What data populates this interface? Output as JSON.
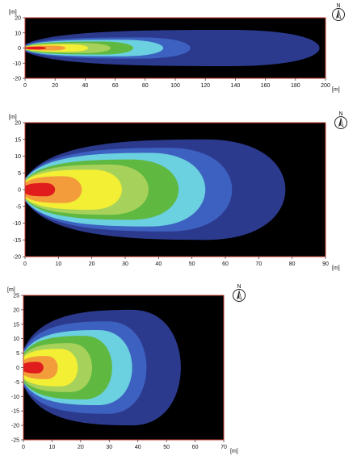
{
  "chart_data": [
    {
      "type": "heatmap",
      "x_unit": "[m]",
      "y_unit": "[m]",
      "xlim": [
        0,
        200
      ],
      "ylim": [
        -20,
        20
      ],
      "x_ticks": [
        "0",
        "20",
        "40",
        "60",
        "80",
        "100",
        "120",
        "140",
        "160",
        "180",
        "200"
      ],
      "y_ticks": [
        "20",
        "10",
        "0",
        "-10",
        "-20"
      ],
      "compass_label": "N",
      "background": "#000000",
      "frame_color": "#c0392b",
      "contours": [
        {
          "color": "#2c3a8e",
          "extent_x": 196,
          "half_width": 12
        },
        {
          "color": "#3d61c0",
          "extent_x": 110,
          "half_width": 7
        },
        {
          "color": "#6bd0df",
          "extent_x": 92,
          "half_width": 5.5
        },
        {
          "color": "#5fb840",
          "extent_x": 72,
          "half_width": 4.3
        },
        {
          "color": "#a6d15a",
          "extent_x": 57,
          "half_width": 3.3
        },
        {
          "color": "#f2ef34",
          "extent_x": 42,
          "half_width": 2.5
        },
        {
          "color": "#f39c3c",
          "extent_x": 27,
          "half_width": 1.6
        },
        {
          "color": "#e01c1c",
          "extent_x": 14,
          "half_width": 0.9
        }
      ]
    },
    {
      "type": "heatmap",
      "x_unit": "[m]",
      "y_unit": "[m]",
      "xlim": [
        0,
        90
      ],
      "ylim": [
        -20,
        20
      ],
      "x_ticks": [
        "0",
        "10",
        "20",
        "30",
        "40",
        "50",
        "60",
        "70",
        "80",
        "90"
      ],
      "y_ticks": [
        "20",
        "15",
        "10",
        "5",
        "0",
        "-5",
        "-10",
        "-15",
        "-20"
      ],
      "compass_label": "N",
      "background": "#000000",
      "frame_color": "#c0392b",
      "contours": [
        {
          "color": "#2c3a8e",
          "extent_x": 78,
          "half_width": 15
        },
        {
          "color": "#3d61c0",
          "extent_x": 62,
          "half_width": 12.5
        },
        {
          "color": "#6bd0df",
          "extent_x": 54,
          "half_width": 11
        },
        {
          "color": "#5fb840",
          "extent_x": 46,
          "half_width": 9
        },
        {
          "color": "#a6d15a",
          "extent_x": 37,
          "half_width": 7.5
        },
        {
          "color": "#f2ef34",
          "extent_x": 29,
          "half_width": 6
        },
        {
          "color": "#f39c3c",
          "extent_x": 17,
          "half_width": 4
        },
        {
          "color": "#e01c1c",
          "extent_x": 9,
          "half_width": 2
        }
      ]
    },
    {
      "type": "heatmap",
      "x_unit": "[m]",
      "y_unit": "[m]",
      "xlim": [
        0,
        70
      ],
      "ylim": [
        -25,
        25
      ],
      "x_ticks": [
        "0",
        "10",
        "20",
        "30",
        "40",
        "50",
        "60",
        "70"
      ],
      "y_ticks": [
        "25",
        "20",
        "15",
        "10",
        "5",
        "0",
        "-5",
        "-10",
        "-15",
        "-20",
        "-25"
      ],
      "compass_label": "N",
      "background": "#000000",
      "frame_color": "#c0392b",
      "contours": [
        {
          "color": "#2c3a8e",
          "extent_x": 55,
          "half_width": 20
        },
        {
          "color": "#3d61c0",
          "extent_x": 43,
          "half_width": 16
        },
        {
          "color": "#6bd0df",
          "extent_x": 38,
          "half_width": 13
        },
        {
          "color": "#5fb840",
          "extent_x": 31,
          "half_width": 11
        },
        {
          "color": "#a6d15a",
          "extent_x": 24,
          "half_width": 8.5
        },
        {
          "color": "#f2ef34",
          "extent_x": 19,
          "half_width": 6.5
        },
        {
          "color": "#f39c3c",
          "extent_x": 12,
          "half_width": 4
        },
        {
          "color": "#e01c1c",
          "extent_x": 7,
          "half_width": 2
        }
      ]
    }
  ]
}
